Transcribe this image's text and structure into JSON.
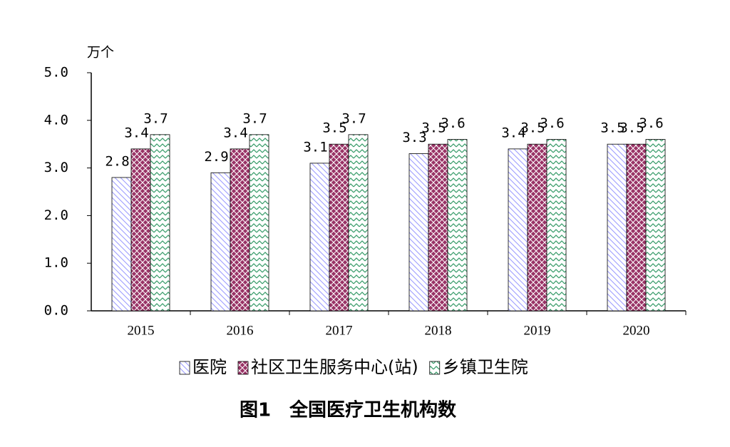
{
  "chart_data": {
    "type": "bar",
    "title": "图1　全国医疗卫生机构数",
    "y_unit": "万个",
    "categories": [
      "2015",
      "2016",
      "2017",
      "2018",
      "2019",
      "2020"
    ],
    "series": [
      {
        "name": "医院",
        "color": "#9999ff",
        "values": [
          2.8,
          2.9,
          3.1,
          3.3,
          3.4,
          3.5
        ]
      },
      {
        "name": "社区卫生服务中心(站)",
        "color": "#993366",
        "values": [
          3.4,
          3.4,
          3.5,
          3.5,
          3.5,
          3.5
        ]
      },
      {
        "name": "乡镇卫生院",
        "color": "#339966",
        "values": [
          3.7,
          3.7,
          3.7,
          3.6,
          3.6,
          3.6
        ]
      }
    ],
    "ylim": [
      0,
      5
    ],
    "yticks": [
      {
        "value": 0,
        "label": "0.0"
      },
      {
        "value": 1,
        "label": "1.0"
      },
      {
        "value": 2,
        "label": "2.0"
      },
      {
        "value": 3,
        "label": "3.0"
      },
      {
        "value": 4,
        "label": "4.0"
      },
      {
        "value": 5,
        "label": "5.0"
      }
    ],
    "grid": false,
    "legend": "bottom"
  }
}
